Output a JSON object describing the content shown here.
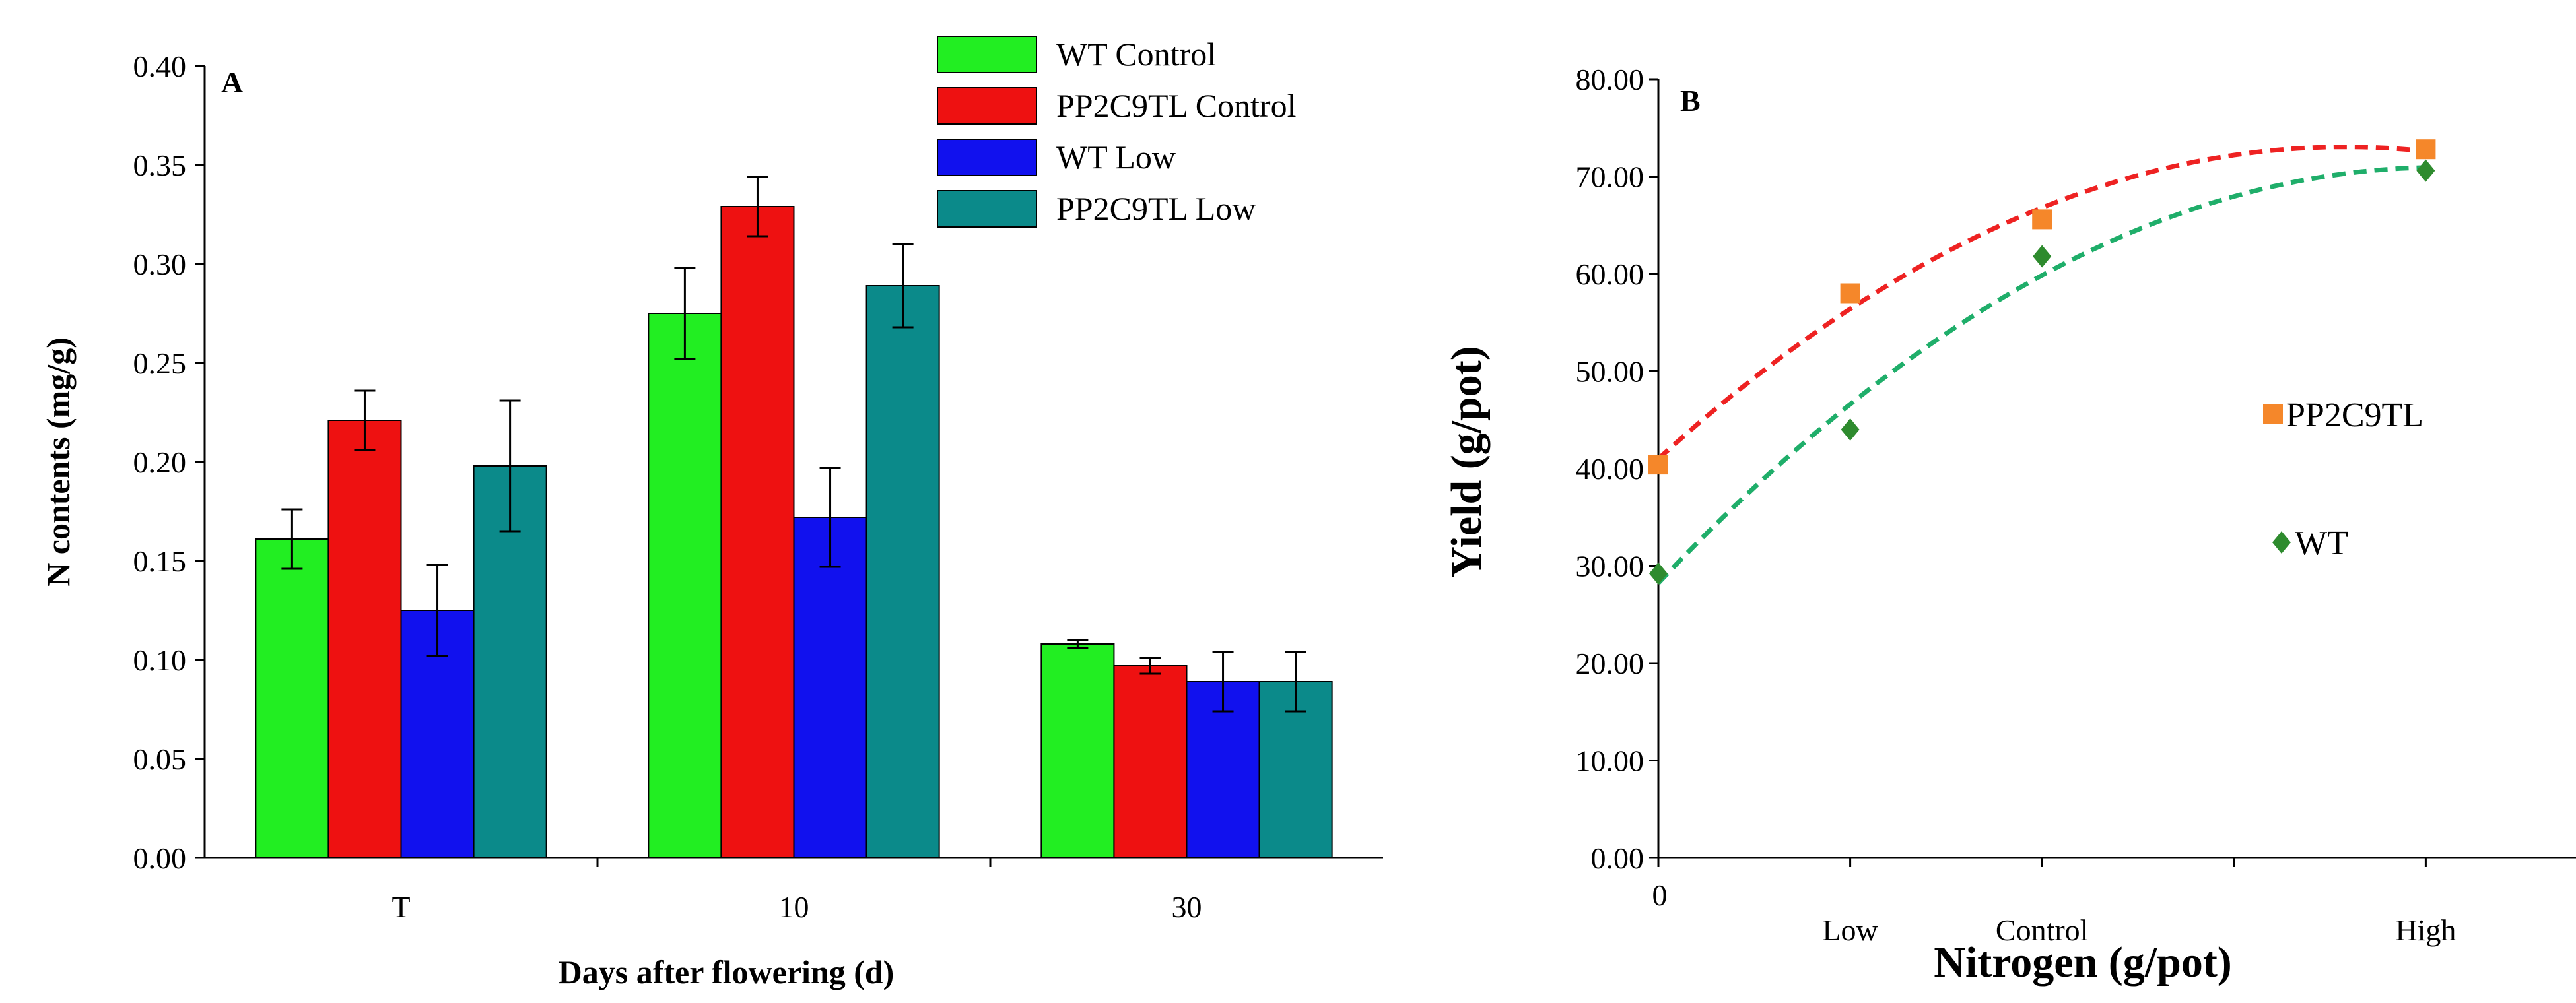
{
  "chart_data": [
    {
      "type": "bar",
      "panel_label": "A",
      "title": "",
      "xlabel": "Days after flowering (d)",
      "ylabel": "N contents (mg/g)",
      "ylim": [
        0,
        0.4
      ],
      "yticks": [
        "0.00",
        "0.05",
        "0.10",
        "0.15",
        "0.20",
        "0.25",
        "0.30",
        "0.35",
        "0.40"
      ],
      "categories": [
        "T",
        "10",
        "30"
      ],
      "legend_position": "top-right",
      "series": [
        {
          "name": "WT Control",
          "color": "#22ee22",
          "values": [
            0.161,
            0.275,
            0.108
          ],
          "errors": [
            0.015,
            0.023,
            0.002
          ]
        },
        {
          "name": "PP2C9TL Control",
          "color": "#ee1111",
          "values": [
            0.221,
            0.329,
            0.097
          ],
          "errors": [
            0.015,
            0.015,
            0.004
          ]
        },
        {
          "name": "WT Low",
          "color": "#1111ee",
          "values": [
            0.125,
            0.172,
            0.089
          ],
          "errors": [
            0.023,
            0.025,
            0.015
          ]
        },
        {
          "name": "PP2C9TL Low",
          "color": "#0b8a8a",
          "values": [
            0.198,
            0.289,
            0.089
          ],
          "errors": [
            0.033,
            0.021,
            0.015
          ]
        }
      ]
    },
    {
      "type": "scatter",
      "panel_label": "B",
      "title": "",
      "xlabel": "Nitrogen (g/pot)",
      "ylabel": "Yield (g/pot)",
      "ylim": [
        0,
        80
      ],
      "yticks": [
        "0.00",
        "10.00",
        "20.00",
        "30.00",
        "40.00",
        "50.00",
        "60.00",
        "70.00",
        "80.00"
      ],
      "xlim": [
        0,
        5
      ],
      "xticks": [
        {
          "x": 0,
          "label": "0"
        },
        {
          "x": 1,
          "label": "Low"
        },
        {
          "x": 2,
          "label": "Control"
        },
        {
          "x": 3,
          "label": ""
        },
        {
          "x": 4,
          "label": "High"
        },
        {
          "x": 5,
          "label": ""
        }
      ],
      "legend_position": "right",
      "series": [
        {
          "name": "PP2C9TL",
          "color": "#f5872a",
          "trend_color": "#ee2222",
          "marker": "square",
          "x": [
            0,
            1,
            2,
            4
          ],
          "y": [
            40.4,
            58.0,
            65.6,
            72.8
          ]
        },
        {
          "name": "WT",
          "color": "#2e8b2e",
          "trend_color": "#1fae6a",
          "marker": "diamond",
          "x": [
            0,
            1,
            2,
            4
          ],
          "y": [
            29.2,
            44.0,
            61.8,
            70.6
          ]
        }
      ]
    }
  ]
}
